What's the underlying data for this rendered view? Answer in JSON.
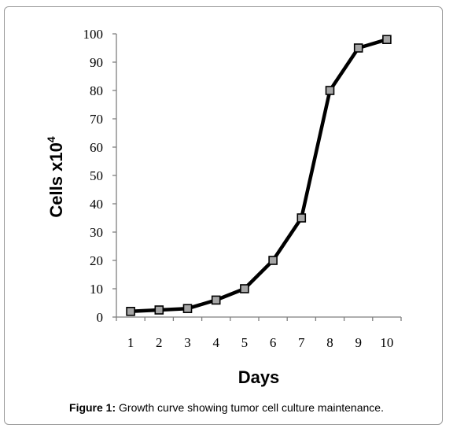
{
  "chart_data": {
    "type": "line",
    "title": "",
    "xlabel": "Days",
    "ylabel": "Cells x10",
    "ylabel_superscript": "4",
    "x": [
      1,
      2,
      3,
      4,
      5,
      6,
      7,
      8,
      9,
      10
    ],
    "y": [
      2,
      2.5,
      3,
      6,
      10,
      20,
      35,
      80,
      95,
      98
    ],
    "xticks": [
      "1",
      "2",
      "3",
      "4",
      "5",
      "6",
      "7",
      "8",
      "9",
      "10"
    ],
    "yticks": [
      "0",
      "10",
      "20",
      "30",
      "40",
      "50",
      "60",
      "70",
      "80",
      "90",
      "100"
    ],
    "ylim": [
      0,
      100
    ],
    "grid": false,
    "legend": "none",
    "line_color": "#000000",
    "marker_fill": "#a6a6a6",
    "marker_stroke": "#000000"
  },
  "caption": {
    "label": "Figure 1:",
    "text": " Growth curve showing tumor cell culture maintenance."
  }
}
